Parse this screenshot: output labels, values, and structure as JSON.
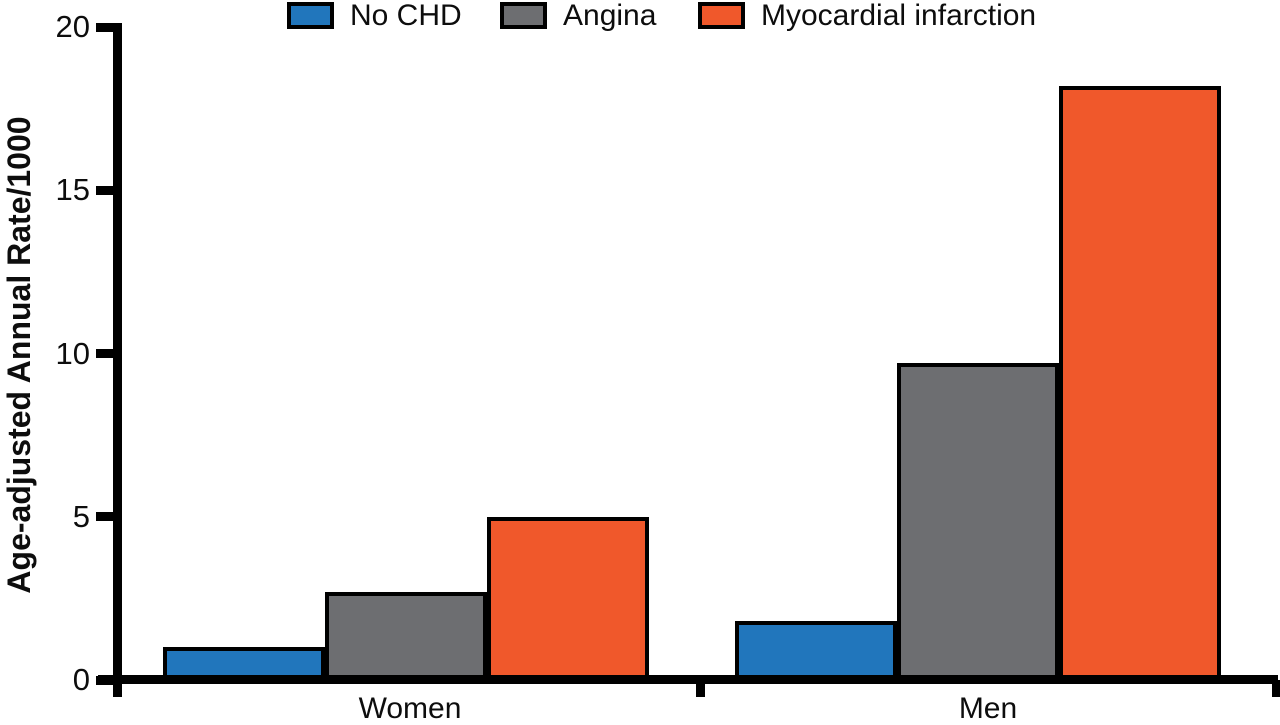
{
  "chart_data": {
    "type": "bar",
    "title": "",
    "ylabel": "Age-adjusted Annual Rate/1000",
    "xlabel": "",
    "ylim": [
      0,
      20
    ],
    "yticks": [
      0,
      5,
      10,
      15,
      20
    ],
    "categories": [
      "Women",
      "Men"
    ],
    "series": [
      {
        "name": "No CHD",
        "color": "#2176BC",
        "values": [
          1.0,
          1.8
        ]
      },
      {
        "name": "Angina",
        "color": "#6D6E71",
        "values": [
          2.7,
          9.7
        ]
      },
      {
        "name": "Myocardial infarction",
        "color": "#F0582B",
        "values": [
          5.0,
          18.2
        ]
      }
    ],
    "legend_position": "top",
    "grid": false,
    "bar_outline_color": "#000000",
    "axis_color": "#000000",
    "background_color": "#FFFFFF"
  }
}
